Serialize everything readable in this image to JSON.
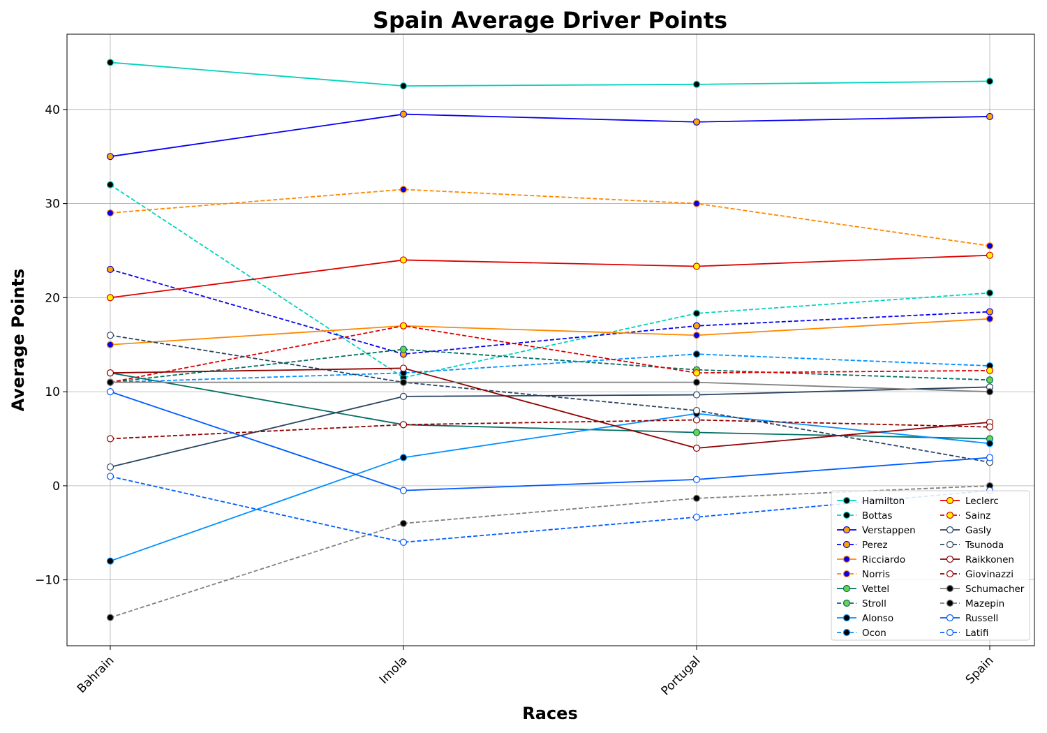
{
  "chart_data": {
    "type": "line",
    "title": "Spain Average Driver Points",
    "xlabel": "Races",
    "ylabel": "Average Points",
    "categories": [
      "Bahrain",
      "Imola",
      "Portugal",
      "Spain"
    ],
    "yticks": [
      -10,
      0,
      10,
      20,
      30,
      40
    ],
    "ylim": [
      -17,
      48
    ],
    "grid": true,
    "legend_position": "lower-right",
    "series": [
      {
        "name": "Hamilton",
        "values": [
          45,
          42.5,
          42.67,
          43
        ],
        "color": "#00D2BE",
        "marker_fill": "#000000",
        "dashed": false
      },
      {
        "name": "Bottas",
        "values": [
          32,
          11.5,
          18.33,
          20.5
        ],
        "color": "#00D2BE",
        "marker_fill": "#000000",
        "dashed": true
      },
      {
        "name": "Verstappen",
        "values": [
          35,
          39.5,
          38.67,
          39.25
        ],
        "color": "#0600EF",
        "marker_fill": "#FFA500",
        "dashed": false
      },
      {
        "name": "Perez",
        "values": [
          23,
          14,
          17,
          18.5
        ],
        "color": "#0600EF",
        "marker_fill": "#FFA500",
        "dashed": true
      },
      {
        "name": "Ricciardo",
        "values": [
          15,
          17,
          16,
          17.75
        ],
        "color": "#FF8700",
        "marker_fill": "#0600EF",
        "dashed": false
      },
      {
        "name": "Norris",
        "values": [
          29,
          31.5,
          30,
          25.5
        ],
        "color": "#FF8700",
        "marker_fill": "#0600EF",
        "dashed": true
      },
      {
        "name": "Vettel",
        "values": [
          12,
          6.5,
          5.67,
          5
        ],
        "color": "#006F62",
        "marker_fill": "#6CD34D",
        "dashed": false
      },
      {
        "name": "Stroll",
        "values": [
          11,
          14.5,
          12.33,
          11.25
        ],
        "color": "#006F62",
        "marker_fill": "#6CD34D",
        "dashed": true
      },
      {
        "name": "Alonso",
        "values": [
          -8,
          3,
          7.67,
          4.5
        ],
        "color": "#0090FF",
        "marker_fill": "#000000",
        "dashed": false
      },
      {
        "name": "Ocon",
        "values": [
          11,
          12,
          14,
          12.75
        ],
        "color": "#0090FF",
        "marker_fill": "#000000",
        "dashed": true
      },
      {
        "name": "Leclerc",
        "values": [
          20,
          24,
          23.33,
          24.5
        ],
        "color": "#DC0000",
        "marker_fill": "#FFF500",
        "dashed": false
      },
      {
        "name": "Sainz",
        "values": [
          11,
          17,
          12,
          12.25
        ],
        "color": "#DC0000",
        "marker_fill": "#FFF500",
        "dashed": true
      },
      {
        "name": "Gasly",
        "values": [
          2,
          9.5,
          9.67,
          10.5
        ],
        "color": "#2B4562",
        "marker_fill": "#FFFFFF",
        "dashed": false
      },
      {
        "name": "Tsunoda",
        "values": [
          16,
          11,
          8,
          2.5
        ],
        "color": "#2B4562",
        "marker_fill": "#FFFFFF",
        "dashed": true
      },
      {
        "name": "Raikkonen",
        "values": [
          12,
          12.5,
          4,
          6.75
        ],
        "color": "#900000",
        "marker_fill": "#FFFFFF",
        "dashed": false
      },
      {
        "name": "Giovinazzi",
        "values": [
          5,
          6.5,
          7,
          6.25
        ],
        "color": "#900000",
        "marker_fill": "#FFFFFF",
        "dashed": true
      },
      {
        "name": "Schumacher",
        "values": [
          11,
          11,
          11,
          10
        ],
        "color": "#808080",
        "marker_fill": "#000000",
        "dashed": false
      },
      {
        "name": "Mazepin",
        "values": [
          -14,
          -4,
          -1.33,
          0
        ],
        "color": "#808080",
        "marker_fill": "#000000",
        "dashed": true
      },
      {
        "name": "Russell",
        "values": [
          10,
          -0.5,
          0.67,
          3
        ],
        "color": "#005AFF",
        "marker_fill": "#FFFFFF",
        "dashed": false
      },
      {
        "name": "Latifi",
        "values": [
          1,
          -6,
          -3.33,
          -0.5
        ],
        "color": "#005AFF",
        "marker_fill": "#FFFFFF",
        "dashed": true
      }
    ]
  }
}
